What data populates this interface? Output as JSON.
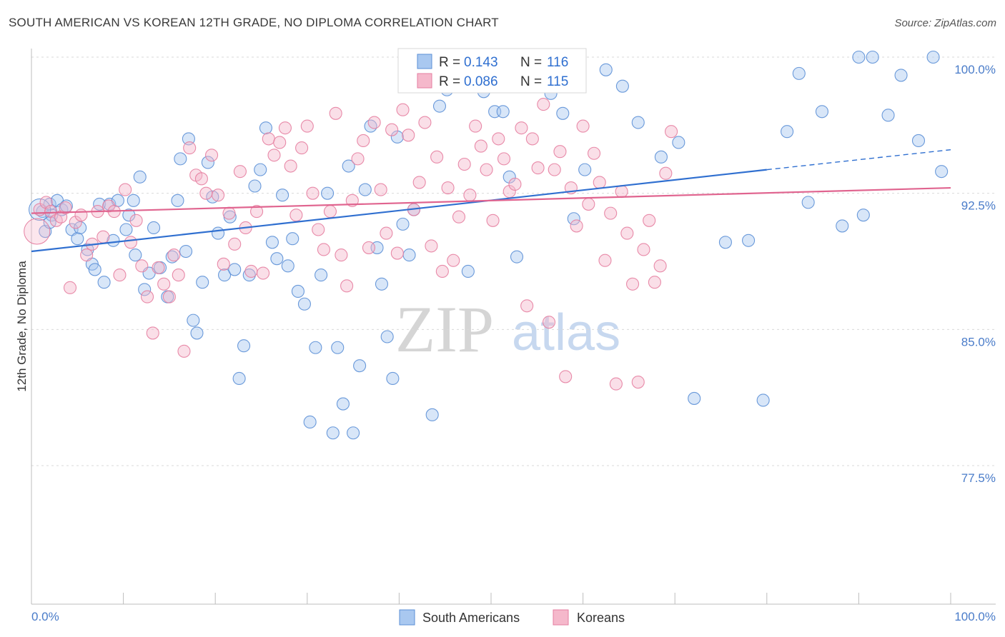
{
  "title": "SOUTH AMERICAN VS KOREAN 12TH GRADE, NO DIPLOMA CORRELATION CHART",
  "source": "Source: ZipAtlas.com",
  "watermark": {
    "zip": "ZIP",
    "atlas": "atlas"
  },
  "colors": {
    "south_american_fill": "#a9c8f0",
    "south_american_stroke": "#5b8fd6",
    "south_american_line": "#2f6fd0",
    "korean_fill": "#f5b8cb",
    "korean_stroke": "#e57ea0",
    "korean_line": "#e0648f",
    "tick_text": "#4a7cc9"
  },
  "legend": {
    "rows": [
      {
        "r_label": "R = ",
        "r_value": "0.143",
        "n_label": "N = ",
        "n_value": "116"
      },
      {
        "r_label": "R = ",
        "r_value": "0.086",
        "n_label": "N = ",
        "n_value": "115"
      }
    ]
  },
  "bottom_legend": {
    "series1": "South Americans",
    "series2": "Koreans"
  },
  "chart_data": {
    "type": "scatter",
    "title": "SOUTH AMERICAN VS KOREAN 12TH GRADE, NO DIPLOMA CORRELATION CHART",
    "xlabel": "",
    "ylabel": "12th Grade, No Diploma",
    "xlim": [
      0,
      100
    ],
    "ylim": [
      70.0,
      101.0
    ],
    "x_tick_labels": [
      "0.0%",
      "100.0%"
    ],
    "y_ticks": [
      77.5,
      85.0,
      92.5,
      100.0
    ],
    "y_tick_labels": [
      "77.5%",
      "85.0%",
      "92.5%",
      "100.0%"
    ],
    "grid": true,
    "legend_position": "top-center",
    "series": [
      {
        "name": "South Americans",
        "trend": {
          "x0": 0,
          "y0": 89.3,
          "x1": 80,
          "y1": 93.8,
          "dash_to_x": 100,
          "dash_to_y": 94.9
        },
        "points": [
          [
            1.2,
            91.5
          ],
          [
            1.5,
            90.4
          ],
          [
            2.0,
            91.9
          ],
          [
            2.2,
            91.3
          ],
          [
            2.8,
            92.1
          ],
          [
            3.3,
            91.6
          ],
          [
            3.8,
            91.8
          ],
          [
            2.0,
            90.9
          ],
          [
            4.4,
            90.5
          ],
          [
            5.0,
            90.0
          ],
          [
            5.3,
            90.6
          ],
          [
            6.1,
            89.4
          ],
          [
            6.6,
            88.6
          ],
          [
            6.9,
            88.3
          ],
          [
            7.4,
            91.9
          ],
          [
            7.9,
            87.6
          ],
          [
            8.5,
            91.9
          ],
          [
            8.9,
            89.9
          ],
          [
            9.4,
            92.1
          ],
          [
            10.3,
            90.5
          ],
          [
            10.6,
            91.3
          ],
          [
            11.1,
            92.1
          ],
          [
            11.3,
            89.1
          ],
          [
            11.8,
            93.4
          ],
          [
            12.3,
            87.2
          ],
          [
            12.8,
            88.1
          ],
          [
            13.3,
            90.6
          ],
          [
            14.0,
            88.4
          ],
          [
            14.8,
            86.8
          ],
          [
            15.3,
            89.0
          ],
          [
            15.9,
            92.1
          ],
          [
            16.2,
            94.4
          ],
          [
            16.8,
            89.3
          ],
          [
            17.1,
            95.5
          ],
          [
            17.6,
            85.5
          ],
          [
            18.0,
            84.8
          ],
          [
            18.6,
            87.6
          ],
          [
            19.2,
            94.2
          ],
          [
            19.7,
            92.3
          ],
          [
            20.3,
            90.3
          ],
          [
            21.0,
            88.0
          ],
          [
            21.6,
            91.2
          ],
          [
            22.1,
            88.3
          ],
          [
            22.6,
            82.3
          ],
          [
            23.1,
            84.1
          ],
          [
            23.7,
            88.0
          ],
          [
            24.3,
            92.9
          ],
          [
            24.9,
            93.8
          ],
          [
            25.5,
            96.1
          ],
          [
            26.2,
            89.8
          ],
          [
            26.7,
            88.9
          ],
          [
            27.3,
            92.4
          ],
          [
            27.9,
            88.5
          ],
          [
            28.4,
            90.0
          ],
          [
            29.0,
            87.1
          ],
          [
            29.7,
            86.4
          ],
          [
            30.3,
            79.9
          ],
          [
            30.9,
            84.0
          ],
          [
            31.5,
            88.0
          ],
          [
            32.2,
            92.5
          ],
          [
            32.8,
            79.3
          ],
          [
            33.3,
            84.0
          ],
          [
            33.9,
            80.9
          ],
          [
            34.5,
            94.0
          ],
          [
            35.0,
            79.3
          ],
          [
            35.7,
            83.0
          ],
          [
            36.3,
            92.7
          ],
          [
            36.9,
            96.2
          ],
          [
            37.6,
            89.5
          ],
          [
            38.1,
            87.5
          ],
          [
            38.7,
            84.6
          ],
          [
            39.3,
            82.3
          ],
          [
            39.8,
            95.6
          ],
          [
            40.4,
            90.8
          ],
          [
            41.1,
            89.1
          ],
          [
            41.6,
            91.6
          ],
          [
            42.2,
            98.8
          ],
          [
            42.9,
            99.4
          ],
          [
            43.6,
            80.3
          ],
          [
            44.4,
            97.3
          ],
          [
            45.2,
            98.2
          ],
          [
            46.3,
            100.0
          ],
          [
            47.5,
            88.2
          ],
          [
            48.5,
            99.2
          ],
          [
            49.2,
            98.1
          ],
          [
            50.4,
            97.0
          ],
          [
            51.3,
            97.0
          ],
          [
            52.0,
            93.4
          ],
          [
            52.8,
            89.0
          ],
          [
            54.5,
            99.5
          ],
          [
            56.5,
            98.0
          ],
          [
            57.8,
            96.9
          ],
          [
            59.0,
            91.1
          ],
          [
            60.2,
            93.8
          ],
          [
            62.5,
            99.3
          ],
          [
            64.3,
            98.4
          ],
          [
            66.0,
            96.4
          ],
          [
            68.5,
            94.5
          ],
          [
            70.4,
            95.3
          ],
          [
            72.1,
            81.2
          ],
          [
            75.5,
            89.8
          ],
          [
            78.0,
            89.9
          ],
          [
            79.6,
            81.1
          ],
          [
            82.2,
            95.9
          ],
          [
            83.5,
            99.1
          ],
          [
            84.5,
            92.0
          ],
          [
            86.0,
            97.0
          ],
          [
            88.2,
            90.7
          ],
          [
            90.0,
            100.0
          ],
          [
            90.5,
            91.3
          ],
          [
            91.5,
            100.0
          ],
          [
            93.2,
            96.8
          ],
          [
            94.6,
            99.0
          ],
          [
            96.5,
            95.4
          ],
          [
            98.1,
            100.0
          ],
          [
            99.0,
            93.7
          ]
        ]
      },
      {
        "name": "Koreans",
        "trend": {
          "x0": 0,
          "y0": 91.4,
          "x1": 100,
          "y1": 92.8
        },
        "points": [
          [
            0.9,
            91.6
          ],
          [
            1.6,
            92.0
          ],
          [
            2.1,
            91.5
          ],
          [
            2.7,
            91.0
          ],
          [
            3.2,
            91.2
          ],
          [
            3.7,
            91.7
          ],
          [
            4.2,
            87.3
          ],
          [
            4.8,
            90.9
          ],
          [
            5.4,
            91.3
          ],
          [
            6.0,
            89.1
          ],
          [
            6.6,
            89.7
          ],
          [
            7.2,
            91.5
          ],
          [
            7.8,
            90.1
          ],
          [
            8.4,
            91.8
          ],
          [
            9.0,
            91.5
          ],
          [
            9.6,
            88.0
          ],
          [
            10.2,
            92.7
          ],
          [
            10.8,
            89.8
          ],
          [
            11.4,
            91.0
          ],
          [
            12.0,
            88.5
          ],
          [
            12.6,
            86.8
          ],
          [
            13.2,
            84.8
          ],
          [
            13.8,
            88.4
          ],
          [
            14.4,
            87.5
          ],
          [
            15.0,
            86.8
          ],
          [
            15.5,
            89.1
          ],
          [
            16.0,
            88.0
          ],
          [
            16.6,
            83.8
          ],
          [
            17.2,
            95.0
          ],
          [
            17.9,
            93.5
          ],
          [
            18.5,
            93.3
          ],
          [
            19.0,
            92.5
          ],
          [
            19.6,
            94.6
          ],
          [
            20.3,
            92.4
          ],
          [
            20.9,
            88.6
          ],
          [
            21.5,
            91.4
          ],
          [
            22.1,
            89.7
          ],
          [
            22.7,
            93.7
          ],
          [
            23.3,
            90.6
          ],
          [
            23.9,
            88.2
          ],
          [
            24.5,
            91.5
          ],
          [
            25.2,
            88.1
          ],
          [
            25.8,
            95.5
          ],
          [
            26.4,
            94.6
          ],
          [
            27.0,
            95.3
          ],
          [
            27.6,
            96.1
          ],
          [
            28.2,
            94.0
          ],
          [
            28.8,
            91.3
          ],
          [
            29.4,
            95.0
          ],
          [
            30.0,
            96.2
          ],
          [
            30.6,
            92.5
          ],
          [
            31.2,
            90.5
          ],
          [
            31.8,
            89.4
          ],
          [
            32.5,
            91.5
          ],
          [
            33.1,
            96.9
          ],
          [
            33.7,
            89.1
          ],
          [
            34.3,
            87.4
          ],
          [
            34.9,
            92.1
          ],
          [
            35.5,
            94.4
          ],
          [
            36.1,
            95.4
          ],
          [
            36.7,
            89.5
          ],
          [
            37.3,
            96.4
          ],
          [
            38.0,
            92.7
          ],
          [
            38.6,
            90.3
          ],
          [
            39.2,
            96.0
          ],
          [
            39.8,
            89.2
          ],
          [
            40.4,
            97.1
          ],
          [
            41.0,
            95.7
          ],
          [
            41.6,
            91.6
          ],
          [
            42.2,
            93.1
          ],
          [
            42.8,
            96.4
          ],
          [
            43.5,
            89.6
          ],
          [
            44.1,
            94.5
          ],
          [
            44.7,
            88.2
          ],
          [
            45.3,
            92.8
          ],
          [
            45.9,
            88.8
          ],
          [
            46.5,
            91.2
          ],
          [
            47.1,
            94.1
          ],
          [
            47.7,
            92.4
          ],
          [
            48.3,
            96.2
          ],
          [
            48.9,
            95.1
          ],
          [
            49.5,
            93.8
          ],
          [
            50.2,
            91.0
          ],
          [
            50.8,
            95.5
          ],
          [
            51.4,
            94.4
          ],
          [
            52.0,
            92.6
          ],
          [
            52.6,
            93.0
          ],
          [
            53.3,
            96.1
          ],
          [
            53.9,
            86.3
          ],
          [
            54.5,
            95.5
          ],
          [
            55.1,
            93.9
          ],
          [
            55.7,
            97.4
          ],
          [
            56.3,
            85.4
          ],
          [
            56.9,
            93.8
          ],
          [
            57.5,
            94.8
          ],
          [
            58.1,
            82.4
          ],
          [
            58.7,
            92.8
          ],
          [
            59.3,
            90.7
          ],
          [
            60.0,
            96.2
          ],
          [
            60.6,
            91.9
          ],
          [
            61.2,
            94.7
          ],
          [
            61.8,
            93.1
          ],
          [
            62.4,
            88.8
          ],
          [
            63.0,
            91.4
          ],
          [
            63.6,
            82.0
          ],
          [
            64.2,
            92.6
          ],
          [
            64.8,
            90.3
          ],
          [
            65.4,
            87.5
          ],
          [
            66.0,
            82.1
          ],
          [
            66.6,
            89.4
          ],
          [
            67.2,
            91.0
          ],
          [
            67.8,
            87.6
          ],
          [
            68.4,
            88.5
          ],
          [
            69.0,
            93.6
          ],
          [
            69.6,
            95.9
          ]
        ]
      }
    ]
  }
}
